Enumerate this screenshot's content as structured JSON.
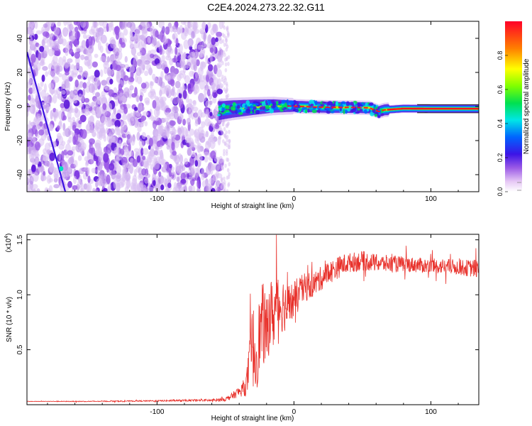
{
  "title": "C2E4.2024.273.22.32.G11",
  "chart_data": [
    {
      "type": "heatmap",
      "xlabel": "Height of straight line (km)",
      "ylabel": "Frequency (Hz)",
      "xlim": [
        -195,
        135
      ],
      "ylim": [
        -50,
        50
      ],
      "xticks": [
        -100,
        0,
        100
      ],
      "xtick_labels": [
        "-100",
        "0",
        "100"
      ],
      "yticks": [
        -40,
        -20,
        0,
        20,
        40
      ],
      "ytick_labels": [
        "-40",
        "-20",
        "0",
        "20",
        "40"
      ],
      "colorbar": {
        "label": "Normalized spectral amplitude",
        "range": [
          0,
          1
        ],
        "ticks": [
          0.0,
          0.2,
          0.4,
          0.6,
          0.8
        ],
        "tick_labels": [
          "0.0",
          "0.2",
          "0.4",
          "0.6",
          "0.8"
        ]
      },
      "noise_region_x": [
        -195,
        -53
      ],
      "signal_band": [
        {
          "x": -55,
          "y": -2.5
        },
        {
          "x": -45,
          "y": -1.5
        },
        {
          "x": -30,
          "y": -0.5
        },
        {
          "x": -15,
          "y": 0.3
        },
        {
          "x": 0,
          "y": 0.2
        },
        {
          "x": 15,
          "y": -0.3
        },
        {
          "x": 30,
          "y": -0.5
        },
        {
          "x": 45,
          "y": -0.6
        },
        {
          "x": 55,
          "y": -0.8
        },
        {
          "x": 62,
          "y": -3.0
        },
        {
          "x": 66,
          "y": -2.0
        },
        {
          "x": 80,
          "y": -1.2
        },
        {
          "x": 100,
          "y": -1.3
        },
        {
          "x": 135,
          "y": -1.3
        }
      ],
      "diagonal_track": {
        "x": [
          -195,
          -167
        ],
        "y": [
          32,
          -50
        ]
      }
    },
    {
      "type": "line",
      "xlabel": "Height of straight line (km)",
      "ylabel": "SNR (10 * v/v)",
      "y_multiplier": "(x10",
      "y_multiplier_exp": "4",
      "y_multiplier_close": ")",
      "xlim": [
        -195,
        135
      ],
      "ylim": [
        0,
        15500
      ],
      "xticks": [
        -100,
        0,
        100
      ],
      "xtick_labels": [
        "-100",
        "0",
        "100"
      ],
      "yticks": [
        5000,
        10000,
        15000
      ],
      "ytick_labels": [
        "0.5",
        "1.0",
        "1.5"
      ],
      "series": [
        {
          "color": "#e8302a",
          "x": [
            -195,
            -150,
            -100,
            -60,
            -50,
            -45,
            -40,
            -35,
            -32,
            -30,
            -28,
            -25,
            -22,
            -20,
            -18,
            -15,
            -12,
            -10,
            -8,
            -5,
            0,
            5,
            10,
            15,
            20,
            25,
            30,
            35,
            40,
            45,
            50,
            60,
            70,
            80,
            90,
            100,
            110,
            120,
            130,
            135
          ],
          "y": [
            300,
            300,
            350,
            400,
            500,
            800,
            1200,
            1700,
            4000,
            5500,
            4200,
            6500,
            7500,
            6000,
            8500,
            8000,
            9500,
            9000,
            9200,
            8800,
            9500,
            10300,
            10800,
            11000,
            11500,
            12000,
            12300,
            12700,
            12900,
            13000,
            13100,
            12900,
            12800,
            12800,
            12700,
            12600,
            12600,
            12500,
            12400,
            12400
          ],
          "noise_amplitude": [
            20,
            40,
            60,
            120,
            180,
            300,
            500,
            900,
            2500,
            4000,
            3500,
            3500,
            4000,
            3500,
            3500,
            3000,
            3000,
            2800,
            2500,
            2200,
            1800,
            1500,
            1300,
            1200,
            1100,
            1100,
            1000,
            1000,
            900,
            900,
            900,
            800,
            800,
            700,
            700,
            700,
            700,
            700,
            800,
            900
          ]
        }
      ]
    }
  ]
}
